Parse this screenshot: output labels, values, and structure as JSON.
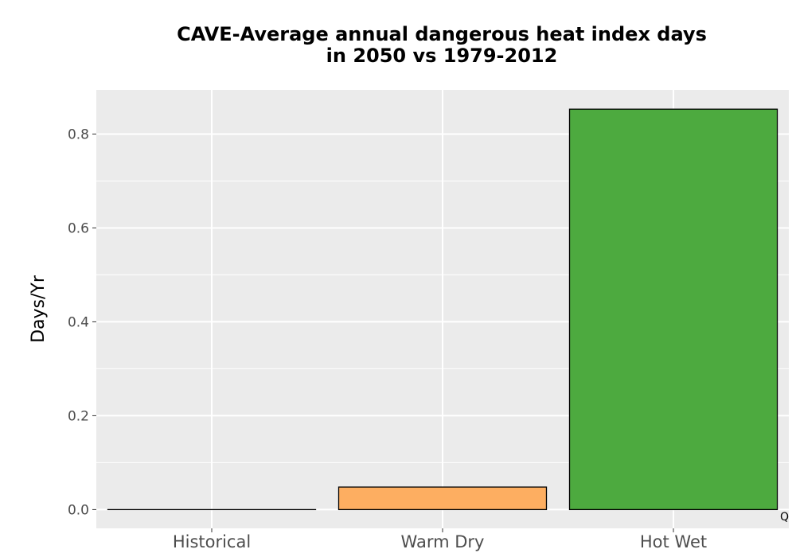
{
  "chart_data": {
    "type": "bar",
    "title_lines": [
      "CAVE-Average annual dangerous heat index days",
      "in 2050 vs 1979-2012"
    ],
    "xlabel": "",
    "ylabel": "Days/Yr",
    "categories": [
      "Historical",
      "Warm Dry",
      "Hot Wet"
    ],
    "values": [
      0.0,
      0.048,
      0.853
    ],
    "colors": [
      "#000000",
      "#FDAE61",
      "#4DAA3F"
    ],
    "ylim": [
      -0.04,
      0.894
    ],
    "yticks": [
      0.0,
      0.2,
      0.4,
      0.6,
      0.8
    ],
    "ytick_labels": [
      "0.0",
      "0.2",
      "0.4",
      "0.6",
      "0.8"
    ],
    "grid": true,
    "background": "#EBEBEB",
    "corner_mark": "Q"
  }
}
